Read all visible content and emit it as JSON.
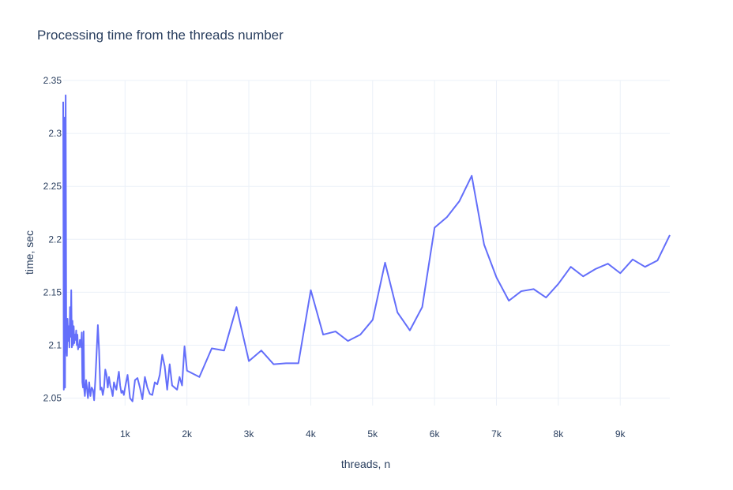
{
  "chart_data": {
    "type": "line",
    "title": "Processing time from the threads number",
    "xlabel": "threads, n",
    "ylabel": "time, sec",
    "xlim": [
      1,
      9801
    ],
    "ylim": [
      2.043,
      2.35
    ],
    "grid": true,
    "legend": "none",
    "x_ticks": [
      {
        "value": 1000,
        "label": "1k"
      },
      {
        "value": 2000,
        "label": "2k"
      },
      {
        "value": 3000,
        "label": "3k"
      },
      {
        "value": 4000,
        "label": "4k"
      },
      {
        "value": 5000,
        "label": "5k"
      },
      {
        "value": 6000,
        "label": "6k"
      },
      {
        "value": 7000,
        "label": "7k"
      },
      {
        "value": 8000,
        "label": "8k"
      },
      {
        "value": 9000,
        "label": "9k"
      }
    ],
    "y_ticks": [
      {
        "value": 2.05,
        "label": "2.05"
      },
      {
        "value": 2.1,
        "label": "2.1"
      },
      {
        "value": 2.15,
        "label": "2.15"
      },
      {
        "value": 2.2,
        "label": "2.2"
      },
      {
        "value": 2.25,
        "label": "2.25"
      },
      {
        "value": 2.3,
        "label": "2.3"
      },
      {
        "value": 2.35,
        "label": "2.35"
      }
    ],
    "series": [
      {
        "color": "#636efa",
        "x": [
          1,
          11,
          21,
          31,
          41,
          51,
          61,
          71,
          81,
          91,
          101,
          111,
          121,
          131,
          141,
          151,
          161,
          171,
          181,
          191,
          201,
          211,
          221,
          231,
          241,
          251,
          261,
          271,
          281,
          291,
          301,
          311,
          321,
          331,
          341,
          351,
          361,
          371,
          381,
          391,
          401,
          421,
          441,
          461,
          481,
          501,
          521,
          541,
          561,
          581,
          601,
          621,
          641,
          661,
          681,
          701,
          721,
          741,
          761,
          781,
          801,
          821,
          841,
          861,
          881,
          901,
          921,
          941,
          961,
          981,
          1001,
          1041,
          1081,
          1121,
          1161,
          1201,
          1241,
          1281,
          1321,
          1361,
          1401,
          1441,
          1481,
          1521,
          1561,
          1601,
          1641,
          1681,
          1721,
          1761,
          1801,
          1841,
          1881,
          1921,
          1961,
          2001,
          2201,
          2401,
          2601,
          2801,
          3001,
          3201,
          3401,
          3601,
          3801,
          4001,
          4201,
          4401,
          4601,
          4801,
          5001,
          5201,
          5401,
          5601,
          5801,
          6001,
          6201,
          6401,
          6601,
          6801,
          7001,
          7201,
          7401,
          7601,
          7801,
          8001,
          8201,
          8401,
          8601,
          8801,
          9001,
          9201,
          9401,
          9601,
          9801
        ],
        "y": [
          2.33,
          2.058,
          2.315,
          2.06,
          2.336,
          2.1,
          2.09,
          2.125,
          2.104,
          2.118,
          2.098,
          2.136,
          2.108,
          2.152,
          2.098,
          2.123,
          2.1,
          2.118,
          2.102,
          2.11,
          2.105,
          2.114,
          2.1,
          2.11,
          2.096,
          2.1,
          2.098,
          2.105,
          2.104,
          2.098,
          2.112,
          2.065,
          2.06,
          2.113,
          2.058,
          2.052,
          2.06,
          2.067,
          2.062,
          2.055,
          2.05,
          2.065,
          2.052,
          2.06,
          2.058,
          2.048,
          2.068,
          2.093,
          2.119,
          2.095,
          2.058,
          2.06,
          2.053,
          2.06,
          2.077,
          2.072,
          2.06,
          2.07,
          2.062,
          2.058,
          2.052,
          2.065,
          2.061,
          2.058,
          2.068,
          2.075,
          2.062,
          2.055,
          2.057,
          2.053,
          2.06,
          2.072,
          2.05,
          2.047,
          2.067,
          2.069,
          2.06,
          2.049,
          2.07,
          2.06,
          2.054,
          2.053,
          2.065,
          2.063,
          2.072,
          2.091,
          2.08,
          2.058,
          2.082,
          2.062,
          2.06,
          2.058,
          2.07,
          2.062,
          2.099,
          2.076,
          2.07,
          2.097,
          2.095,
          2.136,
          2.085,
          2.095,
          2.082,
          2.083,
          2.083,
          2.152,
          2.11,
          2.113,
          2.104,
          2.11,
          2.124,
          2.178,
          2.131,
          2.114,
          2.136,
          2.211,
          2.221,
          2.236,
          2.26,
          2.195,
          2.164,
          2.142,
          2.151,
          2.153,
          2.145,
          2.158,
          2.174,
          2.165,
          2.172,
          2.177,
          2.168,
          2.181,
          2.174,
          2.18,
          2.204
        ]
      }
    ]
  }
}
